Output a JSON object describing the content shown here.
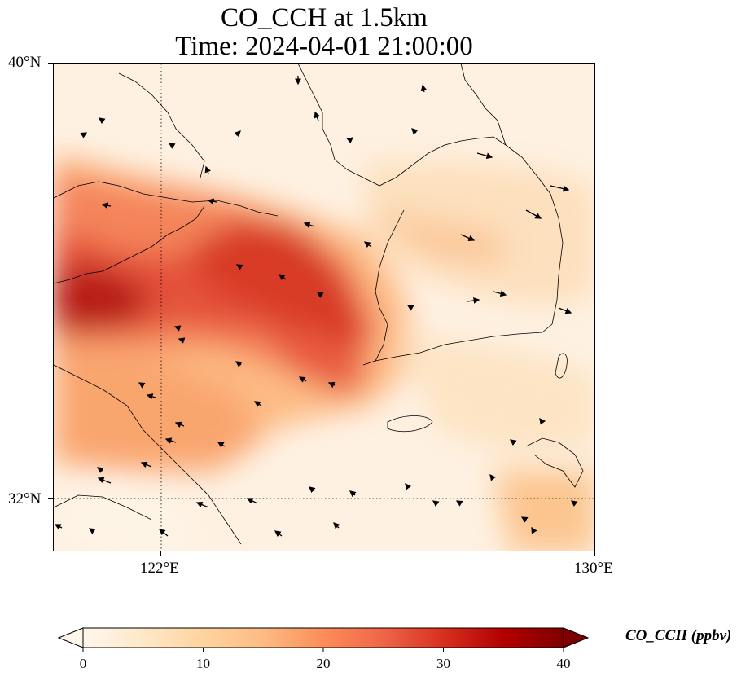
{
  "title": {
    "line1": "CO_CCH at 1.5km",
    "line2": "Time: 2024-04-01 21:00:00"
  },
  "map": {
    "lat_labels": [
      "40°N",
      "32°N"
    ],
    "lon_labels": [
      "122°E",
      "130°E"
    ],
    "lat_range": [
      31,
      40
    ],
    "lon_range": [
      120,
      130
    ],
    "gridlines": "dotted",
    "variable": "CO_CCH",
    "units": "ppbv"
  },
  "colorbar": {
    "title": "CO_CCH (ppbv)",
    "ticks": [
      "0",
      "10",
      "20",
      "30",
      "40"
    ],
    "range": [
      0,
      40
    ],
    "extend": "both",
    "colormap": "OrRd",
    "colors": [
      "#fff7ec",
      "#fee8c8",
      "#fdd49e",
      "#fdbb84",
      "#fc8d59",
      "#ef6548",
      "#d7301f",
      "#b30000",
      "#7f0000"
    ]
  }
}
